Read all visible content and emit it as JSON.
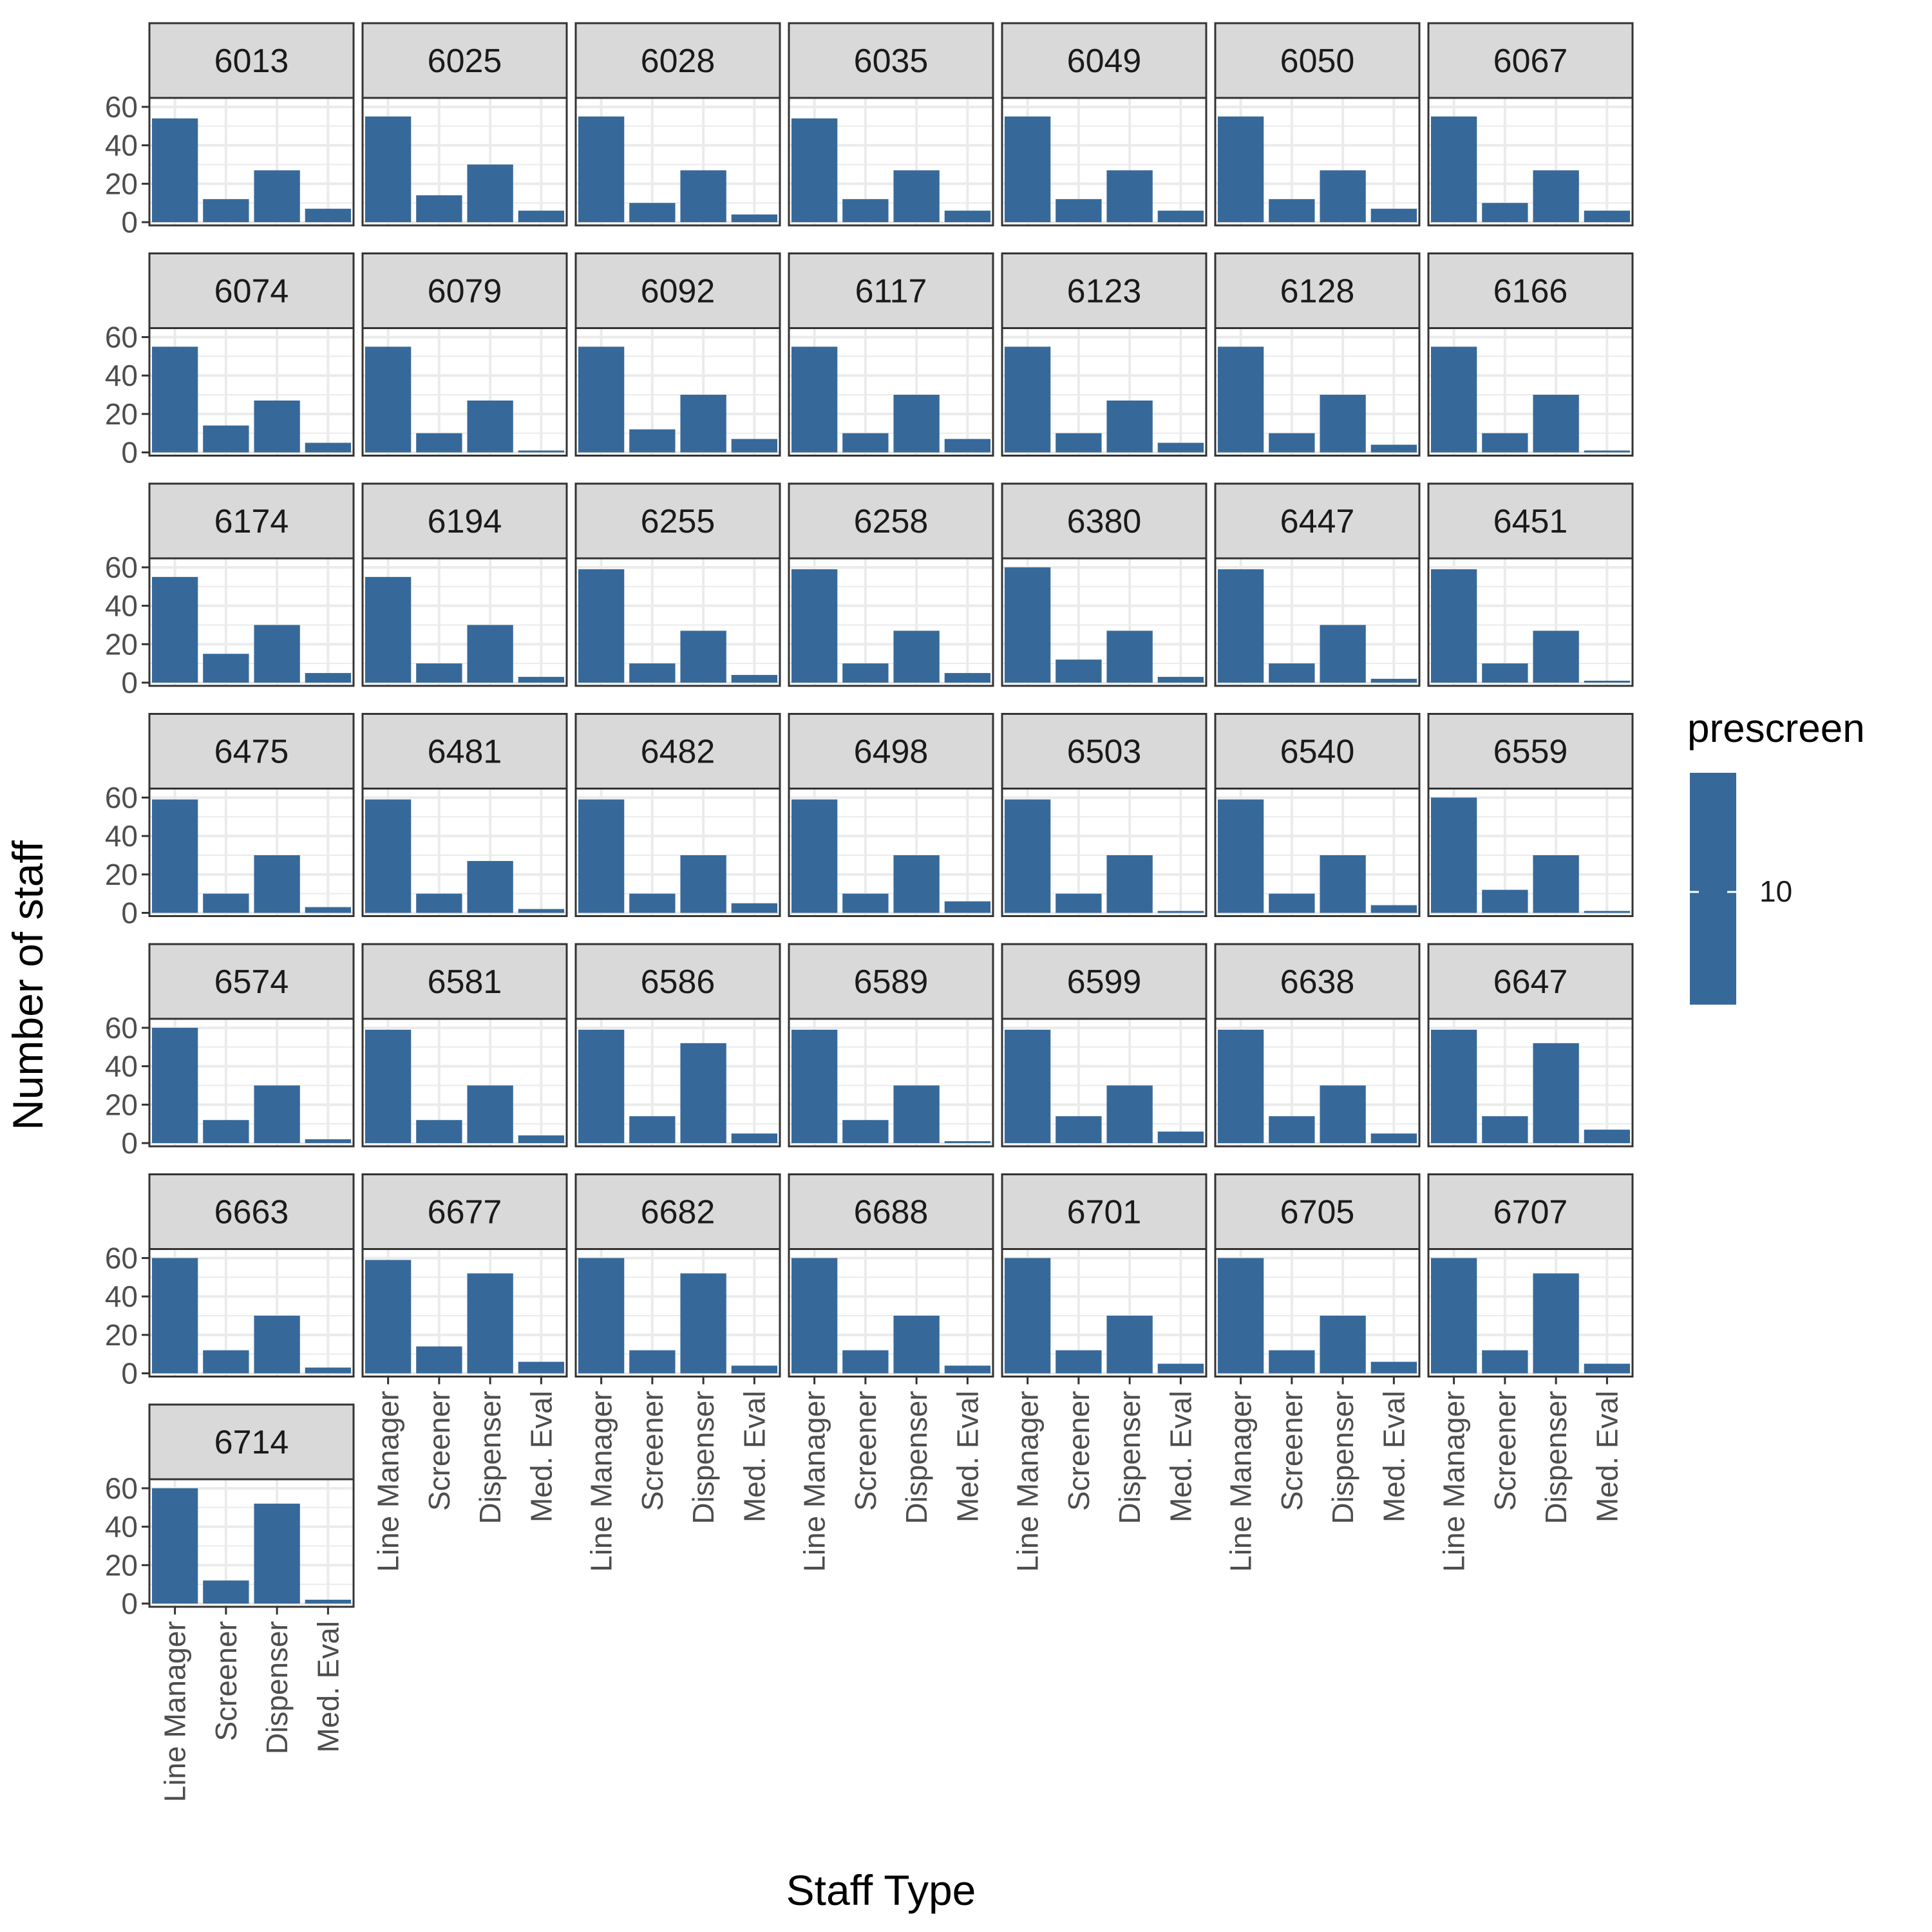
{
  "chart_data": {
    "type": "bar",
    "facet_by": "site",
    "xlabel": "Staff Type",
    "ylabel": "Number of staff",
    "categories": [
      "Line Manager",
      "Screener",
      "Dispenser",
      "Med. Eval"
    ],
    "y_ticks": [
      0,
      20,
      40,
      60
    ],
    "ylim": [
      0,
      63
    ],
    "grid": true,
    "bar_color": "#36699A",
    "legend": {
      "title": "prescreen",
      "label": "10",
      "position": "right"
    },
    "panels": [
      {
        "facet": "6013",
        "values": [
          54,
          12,
          27,
          7
        ]
      },
      {
        "facet": "6025",
        "values": [
          55,
          14,
          30,
          6
        ]
      },
      {
        "facet": "6028",
        "values": [
          55,
          10,
          27,
          4
        ]
      },
      {
        "facet": "6035",
        "values": [
          54,
          12,
          27,
          6
        ]
      },
      {
        "facet": "6049",
        "values": [
          55,
          12,
          27,
          6
        ]
      },
      {
        "facet": "6050",
        "values": [
          55,
          12,
          27,
          7
        ]
      },
      {
        "facet": "6067",
        "values": [
          55,
          10,
          27,
          6
        ]
      },
      {
        "facet": "6074",
        "values": [
          55,
          14,
          27,
          5
        ]
      },
      {
        "facet": "6079",
        "values": [
          55,
          10,
          27,
          1
        ]
      },
      {
        "facet": "6092",
        "values": [
          55,
          12,
          30,
          7
        ]
      },
      {
        "facet": "6117",
        "values": [
          55,
          10,
          30,
          7
        ]
      },
      {
        "facet": "6123",
        "values": [
          55,
          10,
          27,
          5
        ]
      },
      {
        "facet": "6128",
        "values": [
          55,
          10,
          30,
          4
        ]
      },
      {
        "facet": "6166",
        "values": [
          55,
          10,
          30,
          1
        ]
      },
      {
        "facet": "6174",
        "values": [
          55,
          15,
          30,
          5
        ]
      },
      {
        "facet": "6194",
        "values": [
          55,
          10,
          30,
          3
        ]
      },
      {
        "facet": "6255",
        "values": [
          59,
          10,
          27,
          4
        ]
      },
      {
        "facet": "6258",
        "values": [
          59,
          10,
          27,
          5
        ]
      },
      {
        "facet": "6380",
        "values": [
          60,
          12,
          27,
          3
        ]
      },
      {
        "facet": "6447",
        "values": [
          59,
          10,
          30,
          2
        ]
      },
      {
        "facet": "6451",
        "values": [
          59,
          10,
          27,
          1
        ]
      },
      {
        "facet": "6475",
        "values": [
          59,
          10,
          30,
          3
        ]
      },
      {
        "facet": "6481",
        "values": [
          59,
          10,
          27,
          2
        ]
      },
      {
        "facet": "6482",
        "values": [
          59,
          10,
          30,
          5
        ]
      },
      {
        "facet": "6498",
        "values": [
          59,
          10,
          30,
          6
        ]
      },
      {
        "facet": "6503",
        "values": [
          59,
          10,
          30,
          1
        ]
      },
      {
        "facet": "6540",
        "values": [
          59,
          10,
          30,
          4
        ]
      },
      {
        "facet": "6559",
        "values": [
          60,
          12,
          30,
          1
        ]
      },
      {
        "facet": "6574",
        "values": [
          60,
          12,
          30,
          2
        ]
      },
      {
        "facet": "6581",
        "values": [
          59,
          12,
          30,
          4
        ]
      },
      {
        "facet": "6586",
        "values": [
          59,
          14,
          52,
          5
        ]
      },
      {
        "facet": "6589",
        "values": [
          59,
          12,
          30,
          1
        ]
      },
      {
        "facet": "6599",
        "values": [
          59,
          14,
          30,
          6
        ]
      },
      {
        "facet": "6638",
        "values": [
          59,
          14,
          30,
          5
        ]
      },
      {
        "facet": "6647",
        "values": [
          59,
          14,
          52,
          7
        ]
      },
      {
        "facet": "6663",
        "values": [
          60,
          12,
          30,
          3
        ]
      },
      {
        "facet": "6677",
        "values": [
          59,
          14,
          52,
          6
        ]
      },
      {
        "facet": "6682",
        "values": [
          60,
          12,
          52,
          4
        ]
      },
      {
        "facet": "6688",
        "values": [
          60,
          12,
          30,
          4
        ]
      },
      {
        "facet": "6701",
        "values": [
          60,
          12,
          30,
          5
        ]
      },
      {
        "facet": "6705",
        "values": [
          60,
          12,
          30,
          6
        ]
      },
      {
        "facet": "6707",
        "values": [
          60,
          12,
          52,
          5
        ]
      },
      {
        "facet": "6714",
        "values": [
          60,
          12,
          52,
          2
        ]
      }
    ]
  }
}
